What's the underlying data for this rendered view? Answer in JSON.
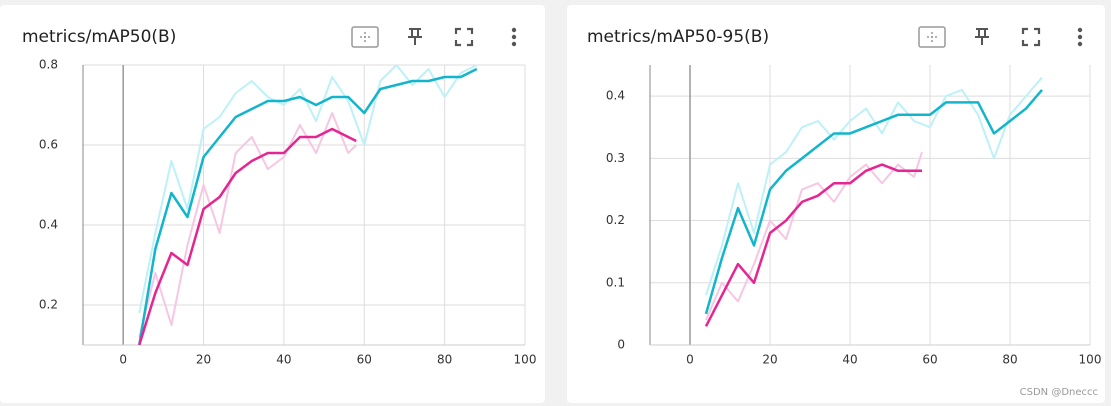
{
  "chart_data": [
    {
      "type": "line",
      "title": "metrics/mAP50(B)",
      "xlim": [
        -10,
        100
      ],
      "xticks": [
        0,
        20,
        40,
        60,
        80,
        100
      ],
      "ylim": [
        0.1,
        0.8
      ],
      "yticks": [
        0.2,
        0.4,
        0.6,
        0.8
      ],
      "grid": true,
      "series": [
        {
          "color": "#bdf1f7",
          "width": 2,
          "x": [
            4,
            8,
            12,
            16,
            20,
            24,
            28,
            32,
            36,
            40,
            44,
            48,
            52,
            56,
            60,
            64,
            68,
            72,
            76,
            80,
            84,
            88
          ],
          "values": [
            0.18,
            0.38,
            0.56,
            0.44,
            0.64,
            0.67,
            0.73,
            0.76,
            0.72,
            0.7,
            0.74,
            0.66,
            0.77,
            0.71,
            0.6,
            0.76,
            0.8,
            0.75,
            0.79,
            0.72,
            0.78,
            0.8
          ]
        },
        {
          "color": "#f7c6e3",
          "width": 2,
          "x": [
            4,
            8,
            12,
            16,
            20,
            24,
            28,
            32,
            36,
            40,
            44,
            48,
            52,
            56,
            58
          ],
          "values": [
            0.12,
            0.28,
            0.15,
            0.35,
            0.5,
            0.38,
            0.58,
            0.62,
            0.54,
            0.57,
            0.65,
            0.58,
            0.68,
            0.58,
            0.6
          ]
        },
        {
          "color": "#12b5cb",
          "width": 2.5,
          "x": [
            4,
            8,
            12,
            16,
            20,
            24,
            28,
            32,
            36,
            40,
            44,
            48,
            52,
            56,
            60,
            64,
            68,
            72,
            76,
            80,
            84,
            88
          ],
          "values": [
            0.1,
            0.34,
            0.48,
            0.42,
            0.57,
            0.62,
            0.67,
            0.69,
            0.71,
            0.71,
            0.72,
            0.7,
            0.72,
            0.72,
            0.68,
            0.74,
            0.75,
            0.76,
            0.76,
            0.77,
            0.77,
            0.79
          ]
        },
        {
          "color": "#e52592",
          "width": 2.5,
          "x": [
            4,
            8,
            12,
            16,
            20,
            24,
            28,
            32,
            36,
            40,
            44,
            48,
            52,
            56,
            58
          ],
          "values": [
            0.1,
            0.23,
            0.33,
            0.3,
            0.44,
            0.47,
            0.53,
            0.56,
            0.58,
            0.58,
            0.62,
            0.62,
            0.64,
            0.62,
            0.61
          ]
        }
      ]
    },
    {
      "type": "line",
      "title": "metrics/mAP50-95(B)",
      "xlim": [
        -10,
        100
      ],
      "xticks": [
        0,
        20,
        40,
        60,
        80,
        100
      ],
      "ylim": [
        0,
        0.45
      ],
      "yticks": [
        0,
        0.1,
        0.2,
        0.3,
        0.4
      ],
      "grid": true,
      "series": [
        {
          "color": "#bdf1f7",
          "width": 2,
          "x": [
            4,
            8,
            12,
            16,
            20,
            24,
            28,
            32,
            36,
            40,
            44,
            48,
            52,
            56,
            60,
            64,
            68,
            72,
            76,
            80,
            84,
            88
          ],
          "values": [
            0.08,
            0.16,
            0.26,
            0.18,
            0.29,
            0.31,
            0.35,
            0.36,
            0.33,
            0.36,
            0.38,
            0.34,
            0.39,
            0.36,
            0.35,
            0.4,
            0.41,
            0.37,
            0.3,
            0.37,
            0.4,
            0.43
          ]
        },
        {
          "color": "#f7c6e3",
          "width": 2,
          "x": [
            4,
            8,
            12,
            16,
            20,
            24,
            28,
            32,
            36,
            40,
            44,
            48,
            52,
            56,
            58
          ],
          "values": [
            0.04,
            0.1,
            0.07,
            0.13,
            0.2,
            0.17,
            0.25,
            0.26,
            0.23,
            0.27,
            0.29,
            0.26,
            0.29,
            0.27,
            0.31
          ]
        },
        {
          "color": "#12b5cb",
          "width": 2.5,
          "x": [
            4,
            8,
            12,
            16,
            20,
            24,
            28,
            32,
            36,
            40,
            44,
            48,
            52,
            56,
            60,
            64,
            68,
            72,
            76,
            80,
            84,
            88
          ],
          "values": [
            0.05,
            0.14,
            0.22,
            0.16,
            0.25,
            0.28,
            0.3,
            0.32,
            0.34,
            0.34,
            0.35,
            0.36,
            0.37,
            0.37,
            0.37,
            0.39,
            0.39,
            0.39,
            0.34,
            0.36,
            0.38,
            0.41
          ]
        },
        {
          "color": "#e52592",
          "width": 2.5,
          "x": [
            4,
            8,
            12,
            16,
            20,
            24,
            28,
            32,
            36,
            40,
            44,
            48,
            52,
            56,
            58
          ],
          "values": [
            0.03,
            0.08,
            0.13,
            0.1,
            0.18,
            0.2,
            0.23,
            0.24,
            0.26,
            0.26,
            0.28,
            0.29,
            0.28,
            0.28,
            0.28
          ]
        }
      ]
    }
  ],
  "watermark": "CSDN @Dneccc"
}
